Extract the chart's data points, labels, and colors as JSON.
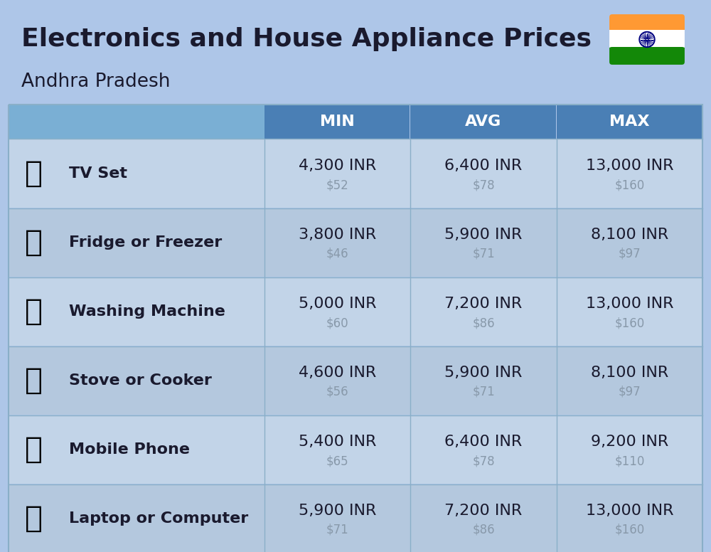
{
  "title": "Electronics and House Appliance Prices",
  "subtitle": "Andhra Pradesh",
  "bg_color": "#aec6e8",
  "header_bg": "#4a7fb5",
  "header_left_bg": "#7aafd4",
  "header_text_color": "#ffffff",
  "row_bg_even": "#c2d4e8",
  "row_bg_odd": "#b4c8de",
  "divider_color": "#8aafc8",
  "col_headers": [
    "MIN",
    "AVG",
    "MAX"
  ],
  "items": [
    {
      "name": "TV Set",
      "min_inr": "4,300 INR",
      "min_usd": "$52",
      "avg_inr": "6,400 INR",
      "avg_usd": "$78",
      "max_inr": "13,000 INR",
      "max_usd": "$160"
    },
    {
      "name": "Fridge or Freezer",
      "min_inr": "3,800 INR",
      "min_usd": "$46",
      "avg_inr": "5,900 INR",
      "avg_usd": "$71",
      "max_inr": "8,100 INR",
      "max_usd": "$97"
    },
    {
      "name": "Washing Machine",
      "min_inr": "5,000 INR",
      "min_usd": "$60",
      "avg_inr": "7,200 INR",
      "avg_usd": "$86",
      "max_inr": "13,000 INR",
      "max_usd": "$160"
    },
    {
      "name": "Stove or Cooker",
      "min_inr": "4,600 INR",
      "min_usd": "$56",
      "avg_inr": "5,900 INR",
      "avg_usd": "$71",
      "max_inr": "8,100 INR",
      "max_usd": "$97"
    },
    {
      "name": "Mobile Phone",
      "min_inr": "5,400 INR",
      "min_usd": "$65",
      "avg_inr": "6,400 INR",
      "avg_usd": "$78",
      "max_inr": "9,200 INR",
      "max_usd": "$110"
    },
    {
      "name": "Laptop or Computer",
      "min_inr": "5,900 INR",
      "min_usd": "$71",
      "avg_inr": "7,200 INR",
      "avg_usd": "$86",
      "max_inr": "13,000 INR",
      "max_usd": "$160"
    }
  ],
  "inr_fontsize": 16,
  "usd_fontsize": 12,
  "item_name_fontsize": 16,
  "header_fontsize": 16,
  "title_fontsize": 26,
  "subtitle_fontsize": 19,
  "device_emojis": [
    "📺",
    "🧐",
    "🧹",
    "🔥",
    "📱",
    "💻"
  ]
}
